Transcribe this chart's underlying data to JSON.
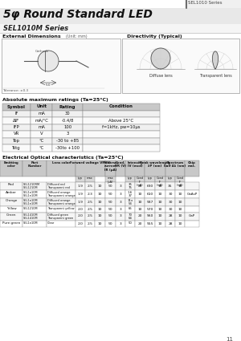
{
  "title": "5φ Round Standard LED",
  "subtitle": "SEL1010M Series",
  "series_label": "SEL1010 Series",
  "bg_color": "#ffffff",
  "abs_max_title": "Absolute maximum ratings (Ta=25°C)",
  "abs_max_headers": [
    "Symbol",
    "Unit",
    "Rating",
    "Condition"
  ],
  "abs_max_rows": [
    [
      "IF",
      "mA",
      "30",
      ""
    ],
    [
      "ΔIF",
      "mA/°C",
      "-0.4/8",
      "Above 25°C"
    ],
    [
      "IFP",
      "mA",
      "100",
      "f=1kHz, pw=10μs"
    ],
    [
      "VR",
      "V",
      "3",
      ""
    ],
    [
      "Top",
      "°C",
      "-30 to +85",
      ""
    ],
    [
      "Tstg",
      "°C",
      "-30to +100",
      ""
    ]
  ],
  "elec_title": "Electrical Optical characteristics (Ta=25°C)",
  "elec_rows": [
    {
      "color": "Red",
      "parts": "SEL1210RM\nSEL1210M",
      "lens": "Diffused red\nTransparent red",
      "vf_typ": "1.9",
      "vf_max": "2.5",
      "if_c": "10",
      "ir": "50",
      "vr": "3",
      "iv": "35\n75",
      "iv_c": "20",
      "lp": "630",
      "lp_c": "10",
      "dl": "35",
      "dl_c": "10",
      "chip": ""
    },
    {
      "color": "Amber",
      "parts": "SEL1n10M\nSEL1n10M",
      "lens": "Diffused orange\nTransparent orange",
      "vf_typ": "1.9",
      "vf_max": "2.3",
      "if_c": "10",
      "ir": "50",
      "vr": "3",
      "iv": "1.6\n37",
      "iv_c": "10",
      "lp": "610",
      "lp_c": "10",
      "dl": "30",
      "dl_c": "10",
      "chip": "GaAsP"
    },
    {
      "color": "Orange",
      "parts": "SEL1n10M\nSEL1n10M",
      "lens": "Diffused orange\nTransparent orange",
      "vf_typ": "1.9",
      "vf_max": "2.5",
      "if_c": "10",
      "ir": "50",
      "vr": "3",
      "iv": "11x\n54",
      "iv_c": "10",
      "lp": "587",
      "lp_c": "10",
      "dl": "30",
      "dl_c": "10",
      "chip": ""
    },
    {
      "color": "Yellow",
      "parts": "SEL1210M",
      "lens": "Transparent yellow",
      "vf_typ": "2.0",
      "vf_max": "2.5",
      "if_c": "10",
      "ir": "50",
      "vr": "3",
      "iv": "65",
      "iv_c": "10",
      "lp": "570",
      "lp_c": "10",
      "dl": "30",
      "dl_c": "10",
      "chip": ""
    },
    {
      "color": "Green",
      "parts": "SEL1410M\nSEL1410M",
      "lens": "Diffused green\nTransparent green",
      "vf_typ": "2.0",
      "vf_max": "2.5",
      "if_c": "10",
      "ir": "50",
      "vr": "3",
      "iv": "70\n64",
      "iv_c": "20",
      "lp": "560",
      "lp_c": "10",
      "dl": "28",
      "dl_c": "10",
      "chip": "GaP"
    },
    {
      "color": "Pure green",
      "parts": "SEL1n10M",
      "lens": "Clear",
      "vf_typ": "2.0",
      "vf_max": "2.5",
      "if_c": "10",
      "ir": "50",
      "vr": "3",
      "iv": "50",
      "iv_c": "20",
      "lp": "555",
      "lp_c": "10",
      "dl": "28",
      "dl_c": "10",
      "chip": ""
    }
  ],
  "ext_dim_title": "External Dimensions",
  "ext_dim_unit": "(Unit: mm)",
  "directivity_title": "Directivity (Typical)",
  "diffuse_label": "Diffuse lens",
  "transparent_label": "Transparent lens",
  "page_num": "11"
}
